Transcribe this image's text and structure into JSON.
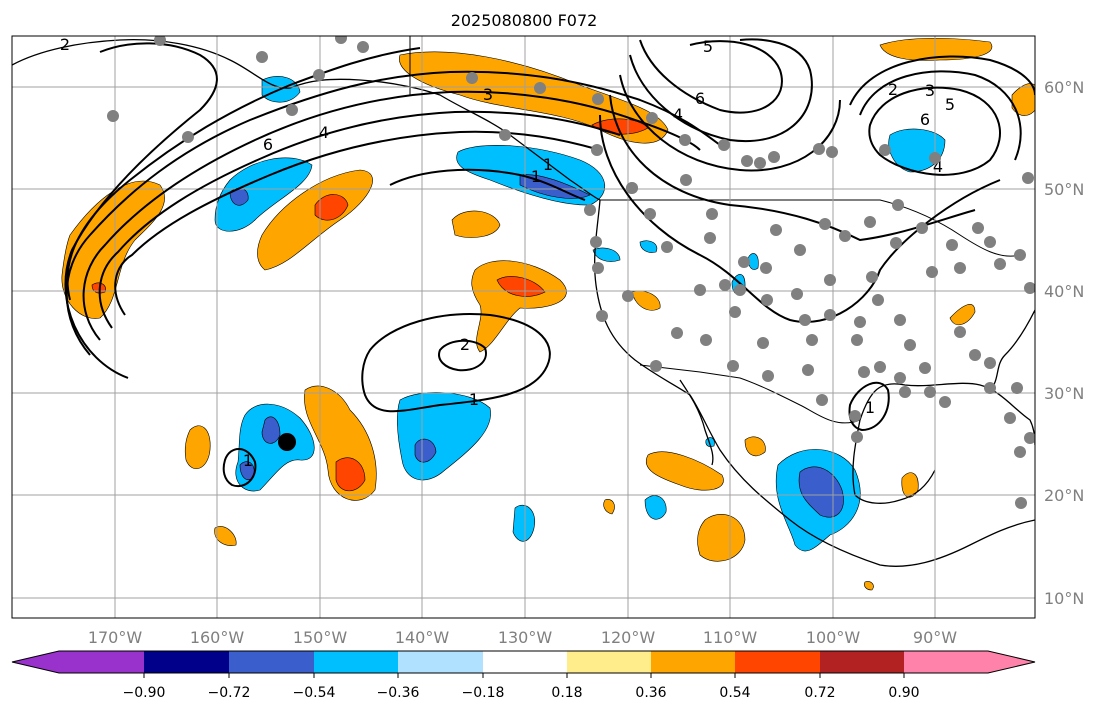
{
  "title": "2025080800 F072",
  "map": {
    "longitude_labels": [
      "170°W",
      "160°W",
      "150°W",
      "140°W",
      "130°W",
      "120°W",
      "110°W",
      "100°W",
      "90°W"
    ],
    "latitude_labels": [
      "60°N",
      "50°N",
      "40°N",
      "30°N",
      "20°N",
      "10°N"
    ],
    "grid": true,
    "contour_labels": [
      "2",
      "6",
      "4",
      "3",
      "5",
      "6",
      "4",
      "2",
      "3",
      "5",
      "6",
      "4",
      "1",
      "1",
      "2",
      "1",
      "1",
      "1"
    ],
    "marker_color": "#808080",
    "storm_marker_color": "#000000"
  },
  "colorbar": {
    "tick_labels": [
      "−0.90",
      "−0.72",
      "−0.54",
      "−0.36",
      "−0.18",
      "0.18",
      "0.36",
      "0.54",
      "0.72",
      "0.90"
    ],
    "colors": [
      "#9932cc",
      "#00008b",
      "#3a5fcd",
      "#00bfff",
      "#b0e2ff",
      "#ffffff",
      "#ffec8b",
      "#ffa500",
      "#ff4500",
      "#b22222",
      "#ff82ab"
    ]
  }
}
